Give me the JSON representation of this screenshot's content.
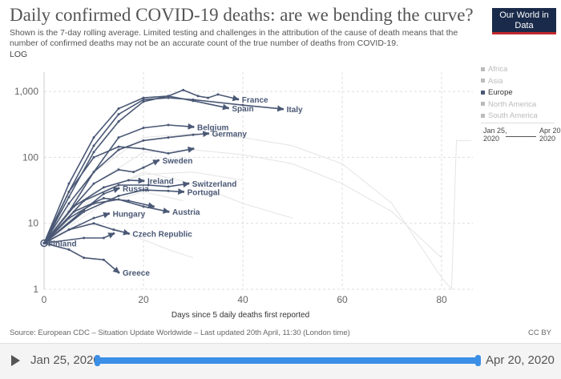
{
  "header": {
    "title": "Daily confirmed COVID-19 deaths: are we bending the curve?",
    "subtitle": "Shown is the 7-day rolling average. Limited testing and challenges in the attribution of the cause of death means that the number of confirmed deaths may not be an accurate count of the true number of deaths from COVID-19.",
    "scale": "LOG",
    "logo": "Our World in Data"
  },
  "legend": {
    "items": [
      "Africa",
      "Asia",
      "Europe",
      "North America",
      "South America"
    ],
    "selected": "Europe"
  },
  "timeline_legend": {
    "start": "Jan 25, 2020",
    "end": "Apr 20, 2020"
  },
  "footer": {
    "source": "Source: European CDC – Situation Update Worldwide – Last updated 20th April, 11:30 (London time)",
    "license": "CC BY"
  },
  "timeline": {
    "start": "Jan 25, 2020",
    "end": "Apr 20, 2020",
    "play_icon": "play-icon"
  },
  "colors": {
    "highlight": "#4a5875",
    "muted": "#e4e4e4",
    "slider": "#3b8fe6"
  },
  "chart_data": {
    "type": "line",
    "xlabel": "Days since 5 daily deaths first reported",
    "ylabel": "",
    "yscale": "log",
    "xlim": [
      0,
      86
    ],
    "ylim": [
      1,
      2000
    ],
    "xticks": [
      "0",
      "20",
      "40",
      "60",
      "80"
    ],
    "yticks": [
      "1",
      "10",
      "100",
      "1,000"
    ],
    "grid": true,
    "series": [
      {
        "name": "France",
        "points": [
          [
            0,
            5
          ],
          [
            5,
            25
          ],
          [
            10,
            120
          ],
          [
            15,
            350
          ],
          [
            20,
            700
          ],
          [
            25,
            850
          ],
          [
            28,
            1050
          ],
          [
            31,
            850
          ],
          [
            33,
            800
          ],
          [
            35,
            900
          ],
          [
            39,
            760
          ]
        ]
      },
      {
        "name": "Italy",
        "points": [
          [
            0,
            5
          ],
          [
            5,
            30
          ],
          [
            10,
            150
          ],
          [
            15,
            450
          ],
          [
            20,
            750
          ],
          [
            25,
            800
          ],
          [
            30,
            750
          ],
          [
            40,
            620
          ],
          [
            48,
            540
          ]
        ]
      },
      {
        "name": "Spain",
        "points": [
          [
            0,
            5
          ],
          [
            5,
            40
          ],
          [
            10,
            200
          ],
          [
            15,
            550
          ],
          [
            20,
            800
          ],
          [
            25,
            850
          ],
          [
            30,
            720
          ],
          [
            37,
            560
          ]
        ]
      },
      {
        "name": "Belgium",
        "points": [
          [
            0,
            5
          ],
          [
            5,
            15
          ],
          [
            10,
            60
          ],
          [
            15,
            200
          ],
          [
            20,
            280
          ],
          [
            25,
            310
          ],
          [
            30,
            290
          ]
        ]
      },
      {
        "name": "Germany",
        "points": [
          [
            0,
            5
          ],
          [
            5,
            20
          ],
          [
            10,
            60
          ],
          [
            15,
            130
          ],
          [
            20,
            180
          ],
          [
            25,
            200
          ],
          [
            30,
            220
          ],
          [
            33,
            230
          ]
        ]
      },
      {
        "name": "",
        "points": [
          [
            0,
            5
          ],
          [
            5,
            30
          ],
          [
            10,
            100
          ],
          [
            15,
            145
          ],
          [
            20,
            135
          ],
          [
            25,
            115
          ],
          [
            30,
            135
          ]
        ]
      },
      {
        "name": "Sweden",
        "points": [
          [
            0,
            5
          ],
          [
            5,
            15
          ],
          [
            10,
            40
          ],
          [
            15,
            65
          ],
          [
            18,
            60
          ],
          [
            20,
            70
          ],
          [
            23,
            90
          ]
        ]
      },
      {
        "name": "Ireland",
        "points": [
          [
            0,
            5
          ],
          [
            6,
            18
          ],
          [
            12,
            35
          ],
          [
            17,
            45
          ],
          [
            20,
            44
          ]
        ]
      },
      {
        "name": "Switzerland",
        "points": [
          [
            0,
            5
          ],
          [
            8,
            22
          ],
          [
            15,
            38
          ],
          [
            21,
            38
          ],
          [
            25,
            36
          ],
          [
            29,
            40
          ]
        ]
      },
      {
        "name": "Russia",
        "points": [
          [
            0,
            5
          ],
          [
            8,
            16
          ],
          [
            12,
            28
          ],
          [
            15,
            34
          ]
        ]
      },
      {
        "name": "Portugal",
        "points": [
          [
            0,
            5
          ],
          [
            8,
            15
          ],
          [
            15,
            26
          ],
          [
            20,
            32
          ],
          [
            25,
            31
          ],
          [
            28,
            30
          ]
        ]
      },
      {
        "name": "Hungary",
        "points": [
          [
            0,
            5
          ],
          [
            5,
            8
          ],
          [
            10,
            12
          ],
          [
            13,
            14
          ]
        ]
      },
      {
        "name": "Austria",
        "points": [
          [
            0,
            5
          ],
          [
            5,
            12
          ],
          [
            10,
            20
          ],
          [
            15,
            23
          ],
          [
            20,
            18
          ],
          [
            25,
            15
          ]
        ]
      },
      {
        "name": "",
        "points": [
          [
            0,
            5
          ],
          [
            6,
            15
          ],
          [
            12,
            24
          ],
          [
            17,
            22
          ],
          [
            22,
            18
          ]
        ]
      },
      {
        "name": "Czech Republic",
        "points": [
          [
            0,
            5
          ],
          [
            5,
            8
          ],
          [
            10,
            10
          ],
          [
            14,
            8
          ],
          [
            17,
            7
          ]
        ]
      },
      {
        "name": "",
        "points": [
          [
            0,
            5
          ],
          [
            8,
            6
          ],
          [
            12,
            6
          ],
          [
            14,
            7
          ]
        ]
      },
      {
        "name": "Greece",
        "points": [
          [
            0,
            5
          ],
          [
            5,
            4
          ],
          [
            8,
            3
          ],
          [
            12,
            2.8
          ],
          [
            15,
            1.8
          ]
        ]
      },
      {
        "name": "Finland",
        "points": [
          [
            0,
            5
          ]
        ]
      }
    ],
    "background_series": [
      [
        [
          0,
          5
        ],
        [
          10,
          60
        ],
        [
          20,
          200
        ],
        [
          30,
          230
        ],
        [
          40,
          200
        ],
        [
          50,
          150
        ],
        [
          60,
          80
        ],
        [
          70,
          20
        ],
        [
          80,
          1.5
        ],
        [
          82,
          1
        ],
        [
          83,
          180
        ],
        [
          86,
          180
        ]
      ],
      [
        [
          0,
          5
        ],
        [
          10,
          40
        ],
        [
          20,
          120
        ],
        [
          30,
          130
        ],
        [
          40,
          110
        ],
        [
          50,
          80
        ],
        [
          60,
          40
        ],
        [
          70,
          15
        ],
        [
          80,
          3
        ]
      ],
      [
        [
          0,
          5
        ],
        [
          10,
          25
        ],
        [
          20,
          60
        ],
        [
          30,
          40
        ],
        [
          40,
          20
        ],
        [
          50,
          12
        ]
      ],
      [
        [
          0,
          5
        ],
        [
          8,
          10
        ],
        [
          15,
          8
        ],
        [
          25,
          4
        ],
        [
          30,
          3
        ]
      ],
      [
        [
          0,
          5
        ],
        [
          10,
          30
        ],
        [
          20,
          55
        ],
        [
          30,
          60
        ],
        [
          40,
          45
        ]
      ],
      [
        [
          0,
          5
        ],
        [
          12,
          20
        ],
        [
          20,
          30
        ],
        [
          28,
          22
        ]
      ]
    ]
  }
}
